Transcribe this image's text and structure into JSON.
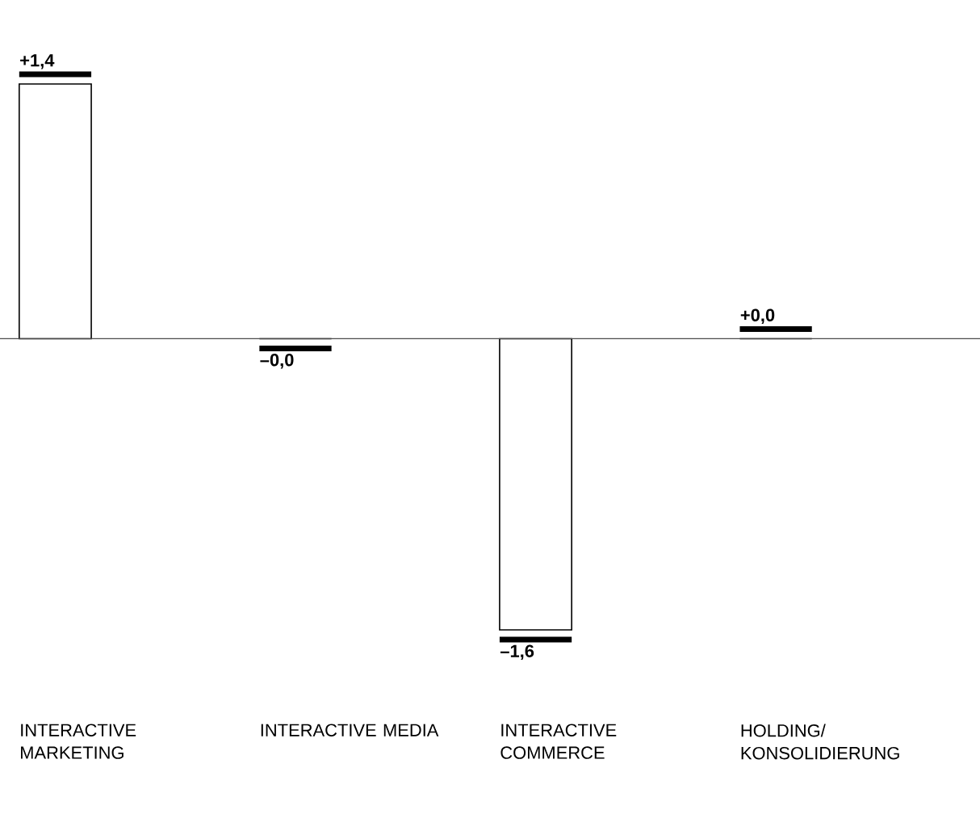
{
  "chart_data": {
    "type": "bar",
    "categories": [
      "INTERACTIVE MARKETING",
      "INTERACTIVE MEDIA",
      "INTERACTIVE COMMERCE",
      "HOLDING/ KONSOLIDIERUNG"
    ],
    "values": [
      1.4,
      -0.0,
      -1.6,
      0.0
    ],
    "value_labels": [
      "+1,4",
      "–0,0",
      "–1,6",
      "+0,0"
    ],
    "color": "#000000"
  }
}
